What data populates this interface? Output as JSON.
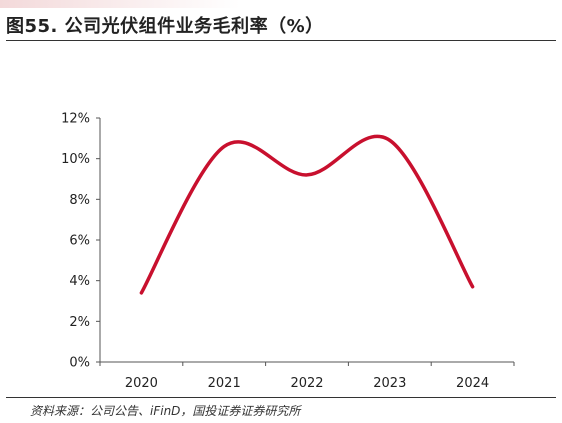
{
  "header": {
    "title": "图55. 公司光伏组件业务毛利率（%）"
  },
  "footer": {
    "source": "资料来源：公司公告、iFinD，国投证券证券研究所"
  },
  "colors": {
    "accent": "#c8102e",
    "axis": "#555555"
  },
  "chart_data": {
    "type": "line",
    "categories": [
      "2020",
      "2021",
      "2022",
      "2023",
      "2024"
    ],
    "series": [
      {
        "values": [
          3.4,
          10.6,
          9.2,
          10.9,
          3.7
        ],
        "color": "#c8102e"
      }
    ],
    "y_ticks": [
      "0%",
      "2%",
      "4%",
      "6%",
      "8%",
      "10%",
      "12%"
    ],
    "ylim": [
      0,
      12
    ],
    "grid": false,
    "smooth": true,
    "legend": "none"
  }
}
